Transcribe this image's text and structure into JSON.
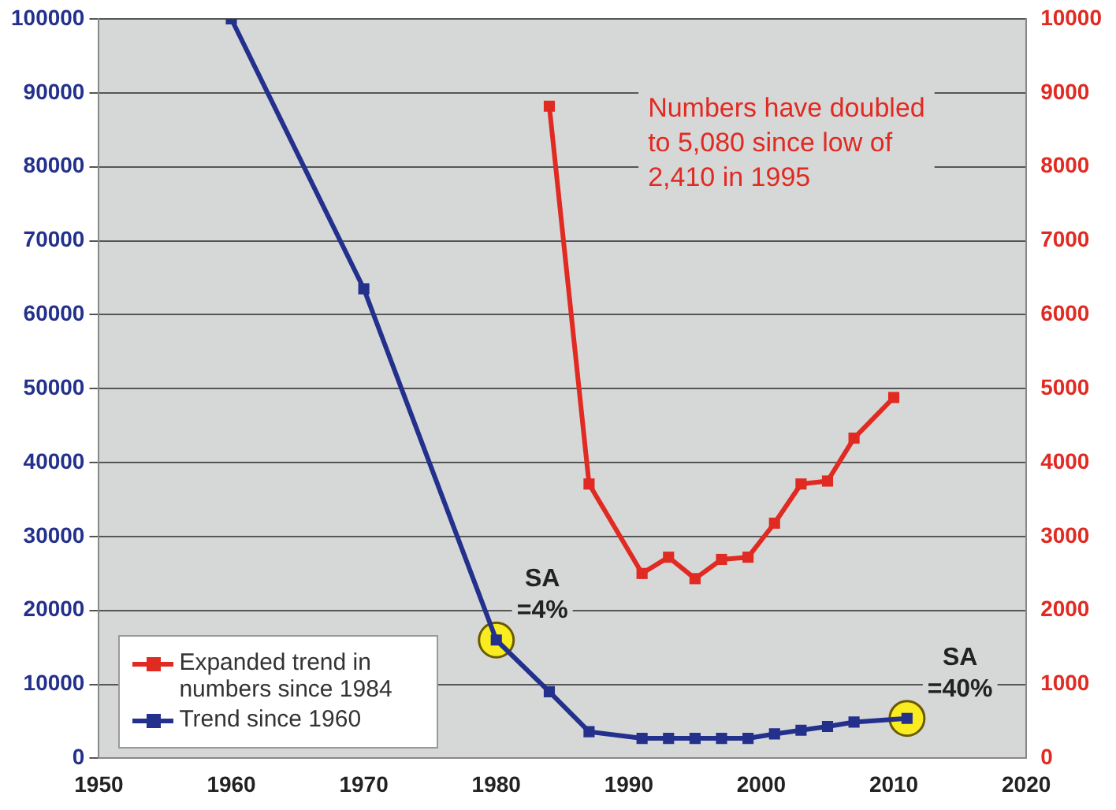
{
  "chart_data": {
    "type": "line",
    "xlim": [
      1950,
      2020
    ],
    "xticks": [
      1950,
      1960,
      1970,
      1980,
      1990,
      2000,
      2010,
      2020
    ],
    "ylim": [
      0,
      100000
    ],
    "yticks": [
      0,
      10000,
      20000,
      30000,
      40000,
      50000,
      60000,
      70000,
      80000,
      90000,
      100000
    ],
    "y2lim": [
      0,
      10000
    ],
    "y2ticks": [
      0,
      1000,
      2000,
      3000,
      4000,
      5000,
      6000,
      7000,
      8000,
      9000,
      10000
    ],
    "grid": "y",
    "legend": "bottom left",
    "marker": "square",
    "line_style": "solid",
    "series": [
      {
        "name": "Expanded trend in numbers since 1984",
        "color": "#e02a22",
        "axis": "y2",
        "x": [
          1984,
          1987,
          1991,
          1993,
          1995,
          1997,
          1999,
          2001,
          2003,
          2005,
          2007,
          2010
        ],
        "values": [
          8820,
          3710,
          2500,
          2720,
          2430,
          2690,
          2720,
          3180,
          3710,
          3750,
          4330,
          4880
        ]
      },
      {
        "name": "Trend since 1960",
        "color": "#23318c",
        "x": [
          1960,
          1970,
          1980,
          1984,
          1987,
          1991,
          1993,
          1995,
          1997,
          1999,
          2001,
          2003,
          2005,
          2007,
          2011
        ],
        "values": [
          100000,
          63500,
          16000,
          9000,
          3600,
          2700,
          2700,
          2700,
          2700,
          2700,
          3300,
          3800,
          4300,
          4900,
          5400
        ]
      }
    ],
    "annotations": [
      {
        "text": "SA =4%",
        "x": 1980,
        "y": 16000
      },
      {
        "text": "SA =40%",
        "x": 2011,
        "y": 5400
      },
      "Numbers have doubled to 5,080 since low of 2,410 in 1995"
    ]
  }
}
